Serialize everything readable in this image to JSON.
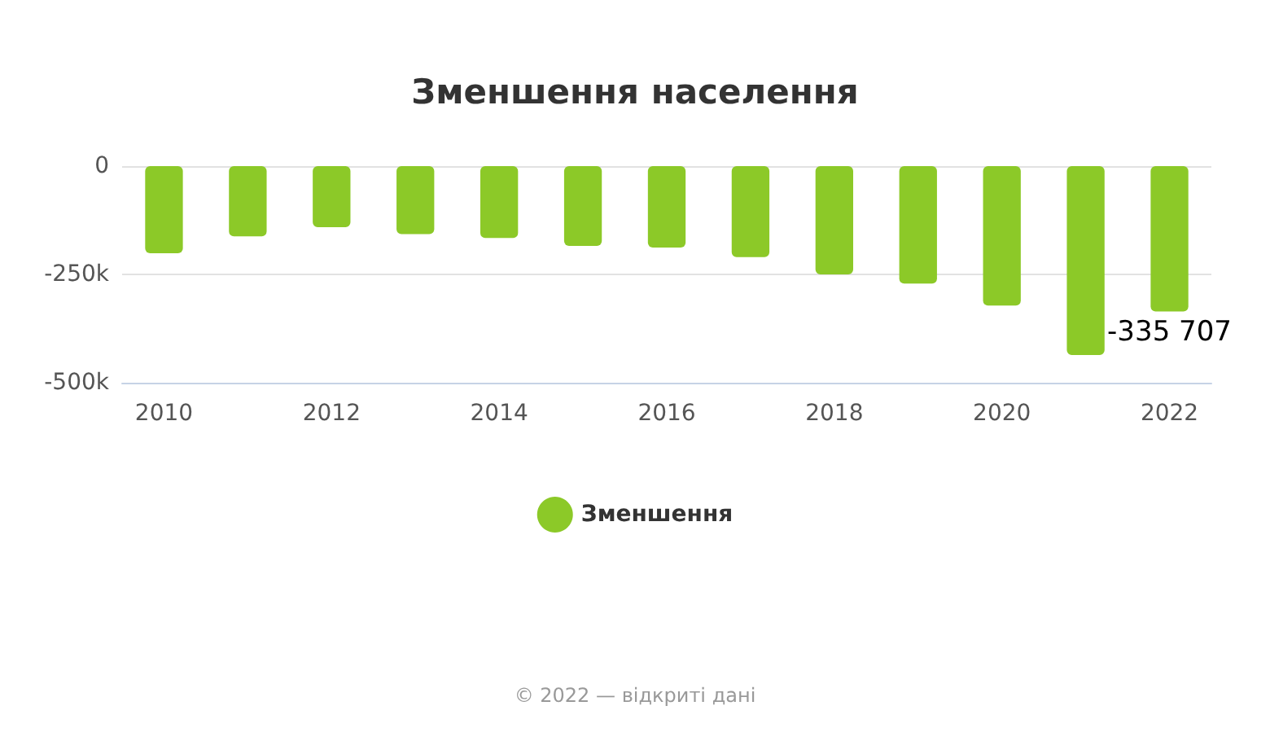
{
  "chart_data": {
    "type": "bar",
    "title": "Зменшення населення",
    "categories": [
      "2010",
      null,
      "2012",
      null,
      "2014",
      null,
      "2016",
      null,
      "2018",
      null,
      "2020",
      null,
      "2022"
    ],
    "series": [
      {
        "name": "Зменшення",
        "color": "#8cc928",
        "values": [
          -201000,
          -162000,
          -141000,
          -157000,
          -166000,
          -184000,
          -188000,
          -210000,
          -250000,
          -271000,
          -322000,
          -436000,
          -335707
        ],
        "value_labels": [
          null,
          null,
          null,
          null,
          null,
          null,
          null,
          null,
          null,
          null,
          null,
          null,
          "-335 707"
        ]
      }
    ],
    "ylim": [
      -500000,
      0
    ],
    "yticks": [
      0,
      {
        "value": -250000,
        "label": "-250k"
      },
      {
        "value": -500000,
        "label": "-500k"
      }
    ],
    "grid": "y",
    "legend": "bottom",
    "annotations": [
      "© 2022 — відкриті дані"
    ]
  }
}
